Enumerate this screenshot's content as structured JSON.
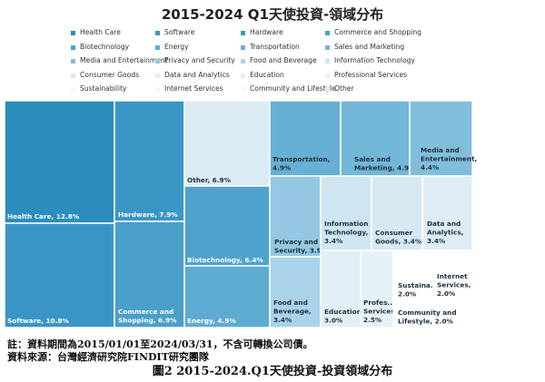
{
  "chart_data": {
    "type": "treemap",
    "title": "2015-2024 Q1天使投資-領域分布",
    "legend_position": "top",
    "categories": [
      {
        "name": "Health Care",
        "value": 12.8,
        "label": "Health Care, 12.8%",
        "color": "#2b8cbe"
      },
      {
        "name": "Software",
        "value": 10.8,
        "label": "Software, 10.8%",
        "color": "#3a95c6"
      },
      {
        "name": "Hardware",
        "value": 7.9,
        "label": "Hardware, 7.9%",
        "color": "#3b96c5"
      },
      {
        "name": "Commerce and Shopping",
        "value": 6.9,
        "label": "Commerce and Shopping, 6.9%",
        "color": "#4a9fcb"
      },
      {
        "name": "Biotechnology",
        "value": 6.4,
        "label": "Biotechnology, 6.4%",
        "color": "#4ea2cd"
      },
      {
        "name": "Energy",
        "value": 4.9,
        "label": "Energy, 4.9%",
        "color": "#5eabd2"
      },
      {
        "name": "Transportation",
        "value": 4.9,
        "label": "Transportation, 4.9%",
        "color": "#67b0d5"
      },
      {
        "name": "Sales and Marketing",
        "value": 4.9,
        "label": "Sales and Marketing, 4.9%",
        "color": "#72b6d8"
      },
      {
        "name": "Media and Entertainment",
        "value": 4.4,
        "label": "Media and Entertainment, 4.4%",
        "color": "#80bedc"
      },
      {
        "name": "Privacy and Security",
        "value": 3.9,
        "label": "Privacy and Security, 3.9%",
        "color": "#94c8e2"
      },
      {
        "name": "Information Technology",
        "value": 3.4,
        "label": "Information Technology, 3.4%",
        "color": "#cfe6f1"
      },
      {
        "name": "Consumer Goods",
        "value": 3.4,
        "label": "Consumer Goods, 3.4%",
        "color": "#d6e9f3"
      },
      {
        "name": "Data and Analytics",
        "value": 3.4,
        "label": "Data and Analytics, 3.4%",
        "color": "#deedf5"
      },
      {
        "name": "Food and Beverage",
        "value": 3.4,
        "label": "Food and Beverage, 3.4%",
        "color": "#a9d3e8"
      },
      {
        "name": "Education",
        "value": 3.0,
        "label": "Education, 3.0%",
        "color": "#e1eff6"
      },
      {
        "name": "Professional Services",
        "value": 2.5,
        "label": "Professional Services, 2.5%",
        "color": "#e6f2f8"
      },
      {
        "name": "Sustainability",
        "value": 2.0,
        "label": "Sustainability, 2.0%",
        "color": "#ffffff"
      },
      {
        "name": "Internet Services",
        "value": 2.0,
        "label": "Internet Services, 2.0%",
        "color": "#ffffff"
      },
      {
        "name": "Community and Lifestyle",
        "value": 2.0,
        "label": "Community and Lifestyle, 2.0%",
        "color": "#ffffff"
      },
      {
        "name": "Other",
        "value": 6.9,
        "label": "Other, 6.9%",
        "color": "#dcecf5"
      }
    ]
  },
  "notes": {
    "line1": "註：資料期間為2015/01/01至2024/03/31，不含可轉換公司債。",
    "line2": "資料來源：台灣經濟研究院FINDIT研究團隊",
    "caption": "圖2  2015-2024.Q1天使投資-投資領域分布"
  }
}
